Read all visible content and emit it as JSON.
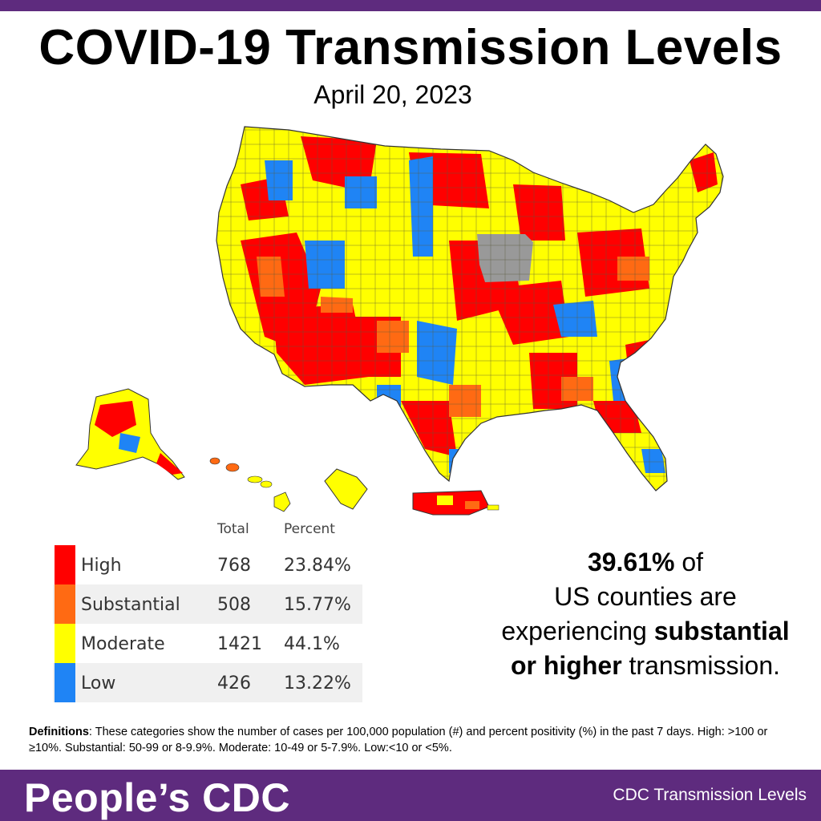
{
  "header": {
    "title": "COVID-19 Transmission Levels",
    "date": "April 20, 2023"
  },
  "colors": {
    "brand_purple": "#5e2b7e",
    "high": "#ff0000",
    "substantial": "#ff6a13",
    "moderate": "#ffff00",
    "low": "#1f84f5",
    "no_data": "#999999"
  },
  "table": {
    "col_total": "Total",
    "col_percent": "Percent",
    "rows": [
      {
        "label": "High",
        "total": "768",
        "percent": "23.84%",
        "color": "#ff0000"
      },
      {
        "label": "Substantial",
        "total": "508",
        "percent": "15.77%",
        "color": "#ff6a13"
      },
      {
        "label": "Moderate",
        "total": "1421",
        "percent": "44.1%",
        "color": "#ffff00"
      },
      {
        "label": "Low",
        "total": "426",
        "percent": "13.22%",
        "color": "#1f84f5"
      }
    ]
  },
  "summary": {
    "percent": "39.61%",
    "t1": " of",
    "t2": "US counties are",
    "t3": "experiencing ",
    "bold1": "substantial",
    "bold2": "or higher",
    "t4": " transmission."
  },
  "definitions": {
    "label": "Definitions",
    "text": ": These categories show the number of cases per 100,000 population (#) and percent positivity (%) in the past 7 days. High: >100  or ≥10%. Substantial: 50-99 or 8-9.9%. Moderate: 10-49 or 5-7.9%. Low:<10 or <5%."
  },
  "footer": {
    "brand": "People’s CDC",
    "source": "CDC Transmission Levels"
  }
}
